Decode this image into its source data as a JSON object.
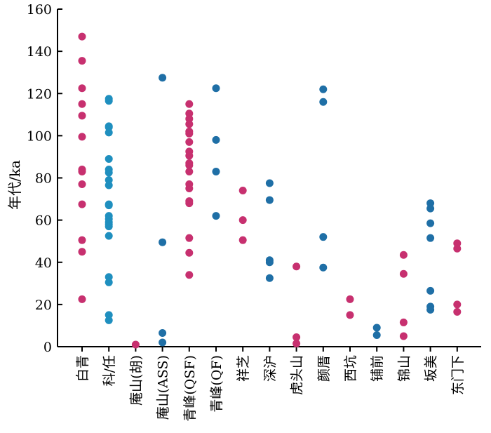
{
  "chart_data": {
    "type": "scatter",
    "ylabel": "年代/ka",
    "ylim": [
      0,
      160
    ],
    "yticks": [
      0,
      20,
      40,
      60,
      80,
      100,
      120,
      140,
      160
    ],
    "grid": false,
    "colors": {
      "magenta": "#c7306f",
      "blue": "#1f6fa6",
      "teal": "#1f8fbf",
      "axis": "#000000"
    },
    "categories": [
      {
        "label": "白青",
        "color": "magenta",
        "values": [
          147,
          135.5,
          122.5,
          115,
          109.5,
          99.5,
          84,
          83,
          77,
          67.5,
          50.5,
          45,
          22.5
        ]
      },
      {
        "label": "科/任",
        "color": "teal",
        "values": [
          117.5,
          116.5,
          104.5,
          104,
          101.5,
          89,
          84,
          82.5,
          79,
          76.5,
          67.5,
          67,
          62,
          60.5,
          59,
          58,
          57,
          52.5,
          33,
          30.5,
          15,
          12.5
        ]
      },
      {
        "label": "庵山(胡)",
        "color": "magenta",
        "values": [
          1
        ]
      },
      {
        "label": "庵山(ASS)",
        "color": "blue",
        "values": [
          127.5,
          49.5,
          6.5,
          2
        ]
      },
      {
        "label": "青峰(QSF)",
        "color": "magenta",
        "values": [
          115,
          110.5,
          108,
          105.5,
          102,
          101,
          97,
          92.5,
          90.5,
          87,
          86,
          83,
          77,
          75,
          69,
          68,
          51.5,
          44.5,
          34
        ]
      },
      {
        "label": "青峰(QF)",
        "color": "blue",
        "values": [
          122.5,
          98,
          83,
          62
        ]
      },
      {
        "label": "祥芝",
        "color": "magenta",
        "values": [
          74,
          60,
          50.5
        ]
      },
      {
        "label": "深沪",
        "color": "blue",
        "values": [
          77.5,
          69.5,
          41,
          40,
          32.5
        ]
      },
      {
        "label": "虎头山",
        "color": "magenta",
        "values": [
          38,
          4.5,
          1.5
        ]
      },
      {
        "label": "颜厝",
        "color": "blue",
        "values": [
          122,
          116,
          52,
          37.5
        ]
      },
      {
        "label": "西坑",
        "color": "magenta",
        "values": [
          22.5,
          15
        ]
      },
      {
        "label": "铺前",
        "color": "blue",
        "values": [
          9,
          5.5
        ]
      },
      {
        "label": "锦山",
        "color": "magenta",
        "values": [
          43.5,
          34.5,
          11.5,
          5
        ]
      },
      {
        "label": "坂美",
        "color": "blue",
        "values": [
          68,
          65.5,
          58.5,
          51.5,
          26.5,
          19,
          17.5
        ]
      },
      {
        "label": "东门下",
        "color": "magenta",
        "values": [
          49,
          46.5,
          20,
          16.5
        ]
      }
    ]
  }
}
